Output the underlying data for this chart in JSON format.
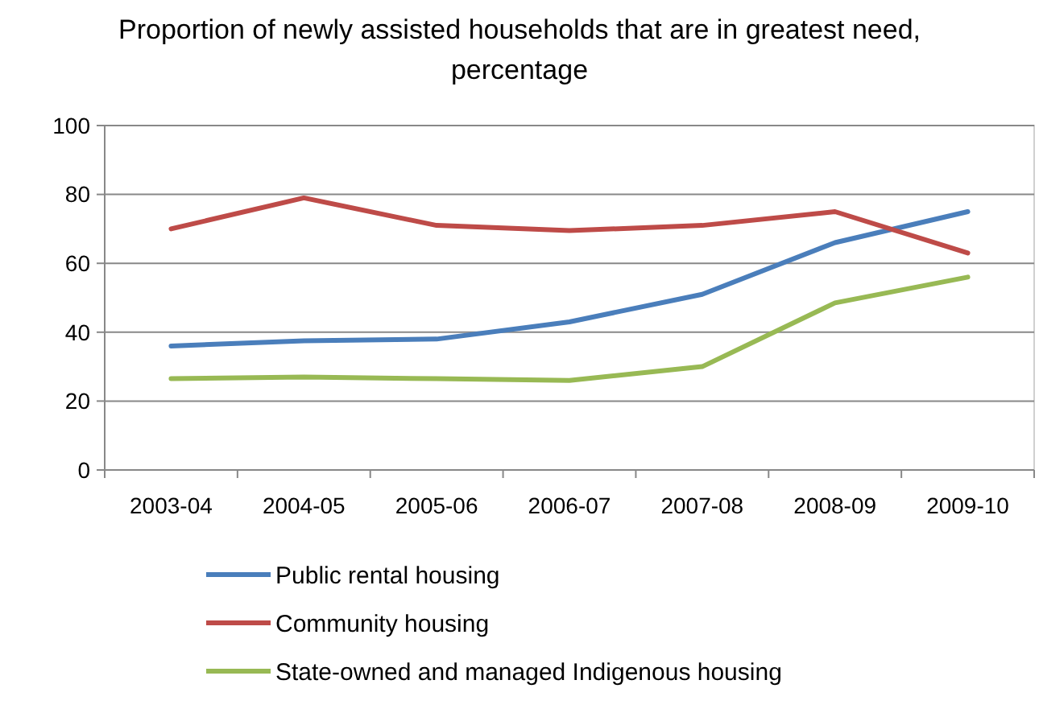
{
  "chart_data": {
    "type": "line",
    "title": "Proportion of newly assisted households that are in greatest need, percentage",
    "categories": [
      "2003-04",
      "2004-05",
      "2005-06",
      "2006-07",
      "2007-08",
      "2008-09",
      "2009-10"
    ],
    "series": [
      {
        "name": "Public rental housing",
        "color": "#4a7ebb",
        "values": [
          36,
          37.5,
          38,
          43,
          51,
          66,
          75
        ]
      },
      {
        "name": "Community housing",
        "color": "#be4b48",
        "values": [
          70,
          79,
          71,
          69.5,
          71,
          75,
          63
        ]
      },
      {
        "name": "State-owned and managed Indigenous housing",
        "color": "#98b954",
        "values": [
          26.5,
          27,
          26.5,
          26,
          30,
          48.5,
          56
        ]
      }
    ],
    "ylim": [
      0,
      100
    ],
    "yticks": [
      0,
      20,
      40,
      60,
      80,
      100
    ],
    "grid": "y",
    "legend": "bottom",
    "marker": "none",
    "line_style": "solid"
  }
}
